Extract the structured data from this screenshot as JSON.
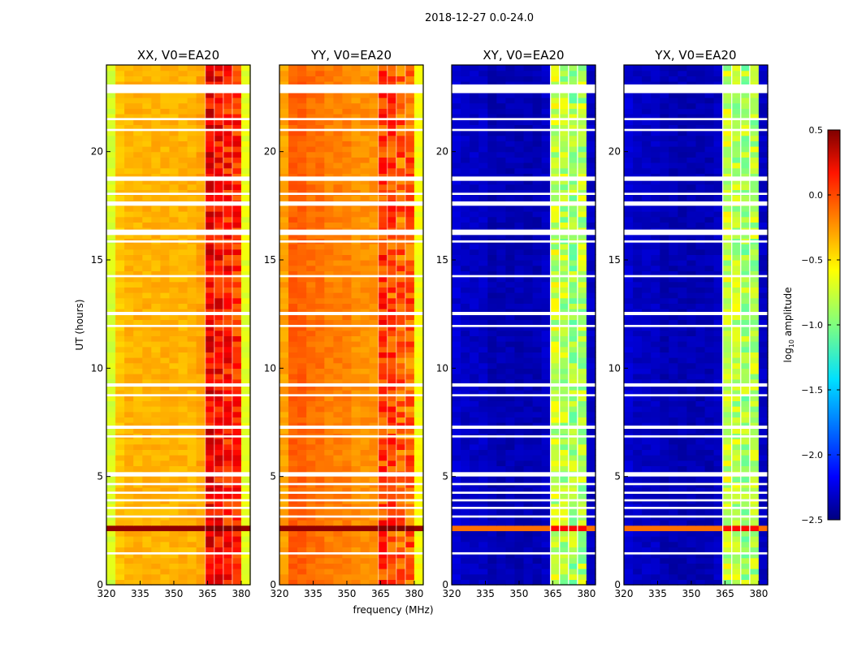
{
  "chart_data": {
    "type": "heatmap",
    "title": "2018-12-27 0.0-24.0",
    "xlabel": "frequency (MHz)",
    "ylabel": "UT (hours)",
    "xlim": [
      320,
      384
    ],
    "ylim": [
      0,
      24
    ],
    "xticks": [
      "320",
      "335",
      "350",
      "365",
      "380"
    ],
    "xtick_values": [
      320,
      335,
      350,
      365,
      380
    ],
    "yticks": [
      "0",
      "5",
      "10",
      "15",
      "20"
    ],
    "ytick_values": [
      0,
      5,
      10,
      15,
      20
    ],
    "colorbar": {
      "label": "log10 amplitude",
      "label_main": "log",
      "label_sub": "10",
      "label_rest": " amplitude",
      "range": [
        -2.5,
        0.5
      ],
      "ticks": [
        "0.5",
        "0.0",
        "−0.5",
        "−1.0",
        "−1.5",
        "−2.0",
        "−2.5"
      ],
      "tick_values": [
        0.5,
        0.0,
        -0.5,
        -1.0,
        -1.5,
        -2.0,
        -2.5
      ],
      "colormap": "jet"
    },
    "freq_bins_mhz": [
      320,
      324,
      328,
      332,
      336,
      340,
      344,
      348,
      352,
      356,
      360,
      364,
      368,
      372,
      376,
      380,
      384
    ],
    "flagged_hours": [
      [
        22.7,
        23.1
      ],
      [
        21.45,
        21.55
      ],
      [
        20.95,
        21.05
      ],
      [
        18.65,
        18.85
      ],
      [
        18.0,
        18.1
      ],
      [
        17.5,
        17.7
      ],
      [
        16.15,
        16.4
      ],
      [
        15.8,
        15.9
      ],
      [
        14.2,
        14.3
      ],
      [
        12.45,
        12.6
      ],
      [
        11.9,
        12.0
      ],
      [
        9.15,
        9.3
      ],
      [
        8.7,
        8.8
      ],
      [
        7.2,
        7.35
      ],
      [
        6.8,
        6.9
      ],
      [
        5.0,
        5.2
      ],
      [
        4.6,
        4.7
      ],
      [
        4.2,
        4.3
      ],
      [
        3.85,
        3.95
      ],
      [
        3.5,
        3.6
      ],
      [
        3.1,
        3.2
      ],
      [
        1.4,
        1.5
      ]
    ],
    "bright_hours": [
      [
        2.45,
        2.85
      ]
    ],
    "panels": [
      {
        "title": "XX, V0=EA20",
        "freq_profile": [
          -0.75,
          -0.45,
          -0.4,
          -0.4,
          -0.4,
          -0.4,
          -0.4,
          -0.4,
          -0.4,
          -0.4,
          -0.35,
          0.15,
          0.1,
          0.05,
          0.0,
          -0.7
        ],
        "bright_value": 0.45
      },
      {
        "title": "YY, V0=EA20",
        "freq_profile": [
          -0.35,
          -0.15,
          -0.15,
          -0.2,
          -0.2,
          -0.25,
          -0.25,
          -0.25,
          -0.3,
          -0.3,
          -0.3,
          -0.05,
          -0.1,
          -0.15,
          -0.15,
          -0.65
        ],
        "bright_value": 0.45
      },
      {
        "title": "XY, V0=EA20",
        "freq_profile": [
          -2.25,
          -2.3,
          -2.3,
          -2.3,
          -2.35,
          -2.35,
          -2.35,
          -2.35,
          -2.35,
          -2.35,
          -2.3,
          -0.8,
          -0.85,
          -0.9,
          -0.85,
          -2.3
        ],
        "bright_value": -0.2
      },
      {
        "title": "YX, V0=EA20",
        "freq_profile": [
          -2.25,
          -2.3,
          -2.3,
          -2.3,
          -2.35,
          -2.35,
          -2.35,
          -2.35,
          -2.35,
          -2.35,
          -2.3,
          -0.8,
          -0.85,
          -0.9,
          -0.85,
          -2.3
        ],
        "bright_value": -0.2
      }
    ]
  }
}
